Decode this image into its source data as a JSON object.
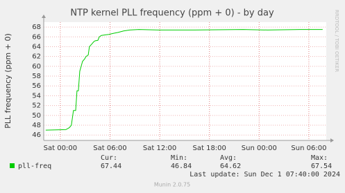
{
  "chart_data": {
    "type": "line",
    "title": "NTP kernel PLL frequency (ppm + 0) - by day",
    "y_label": "PLL frequency (ppm + 0)",
    "watermark": "RRDTOOL / TOBI OETIKER",
    "footer": "Munin 2.0.75",
    "last_update": "Last update: Sun Dec  1 07:40:00 2024",
    "x": [
      "Fri 22:14",
      "Sat 00:40",
      "Sat 01:05",
      "Sat 01:20",
      "Sat 01:35",
      "Sat 01:51",
      "Sat 02:01",
      "Sat 02:11",
      "Sat 02:21",
      "Sat 02:31",
      "Sat 02:41",
      "Sat 02:56",
      "Sat 03:06",
      "Sat 03:22",
      "Sat 03:31",
      "Sat 03:47",
      "Sat 04:02",
      "Sat 04:12",
      "Sat 04:32",
      "Sat 04:42",
      "Sat 04:57",
      "Sat 05:27",
      "Sat 05:52",
      "Sat 06:23",
      "Sat 06:58",
      "Sat 07:38",
      "Sat 08:23",
      "Sat 09:29",
      "Sat 11:50",
      "Sat 16:11",
      "Sat 22:04",
      "Sun 01:01",
      "Sun 04:57",
      "Sun 07:40"
    ],
    "series": [
      {
        "name": "pll-freq",
        "color": "#00cc00",
        "values": [
          47.0,
          47.1,
          47.5,
          48.0,
          51.0,
          51.0,
          55.0,
          55.0,
          59.0,
          60.0,
          61.0,
          61.5,
          62.0,
          62.3,
          64.0,
          64.5,
          65.0,
          65.2,
          65.3,
          66.0,
          66.3,
          66.4,
          66.5,
          66.7,
          66.9,
          67.2,
          67.4,
          67.5,
          67.4,
          67.4,
          67.5,
          67.4,
          67.5,
          67.5
        ]
      }
    ],
    "xlim": [
      "Fri 22:00",
      "Sun 08:06"
    ],
    "xticks": [
      "Sat 00:00",
      "Sat 06:00",
      "Sat 12:00",
      "Sat 18:00",
      "Sun 00:00",
      "Sun 06:00"
    ],
    "ylim": [
      44.9,
      69
    ],
    "yticks": [
      46,
      48,
      50,
      52,
      54,
      56,
      58,
      60,
      62,
      64,
      66,
      68
    ],
    "grid": true,
    "stats": {
      "headers": [
        "Cur:",
        "Min:",
        "Avg:",
        "Max:"
      ],
      "values": [
        67.44,
        46.84,
        64.62,
        67.54
      ]
    }
  }
}
